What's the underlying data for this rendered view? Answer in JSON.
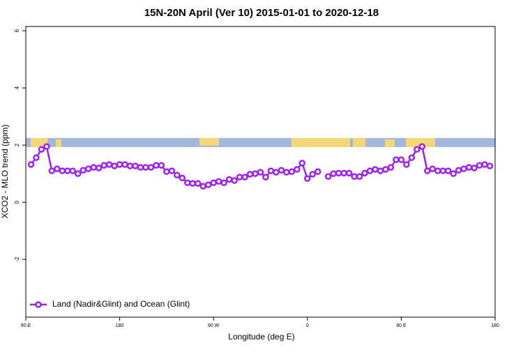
{
  "chart_data": {
    "type": "line",
    "title": "15N-20N April (Ver 10)   2015-01-01 to 2020-12-18",
    "x_label": "Longitude (deg E)",
    "y_label": "XCO2 - MLO trend (ppm)",
    "xlim": [
      90,
      540
    ],
    "xticks": [
      {
        "value": 90,
        "label": "90 E"
      },
      {
        "value": 180,
        "label": "180"
      },
      {
        "value": 270,
        "label": "90 W"
      },
      {
        "value": 360,
        "label": "0"
      },
      {
        "value": 450,
        "label": "90 E"
      },
      {
        "value": 540,
        "label": "180"
      }
    ],
    "ylim": [
      -4.02,
      6.15
    ],
    "yticks": [
      -2,
      0,
      2,
      4,
      6
    ],
    "legend": "bottomleft",
    "x": [
      95,
      100,
      105,
      110,
      115,
      120,
      125,
      130,
      135,
      140,
      145,
      150,
      155,
      160,
      165,
      170,
      175,
      180,
      185,
      190,
      195,
      200,
      205,
      210,
      215,
      220,
      225,
      230,
      235,
      240,
      245,
      250,
      255,
      260,
      265,
      270,
      275,
      280,
      285,
      290,
      295,
      300,
      305,
      310,
      315,
      320,
      325,
      330,
      335,
      340,
      345,
      350,
      355,
      360,
      365,
      370,
      375,
      380,
      385,
      390,
      395,
      400,
      405,
      410,
      415,
      420,
      425,
      430,
      435,
      440,
      445,
      450,
      455,
      460,
      465,
      470,
      475,
      480,
      485,
      490,
      495,
      500,
      505,
      510,
      515,
      520,
      525,
      530,
      535
    ],
    "series": [
      {
        "name": "Land (Nadir&Glint) and Ocean (Glint)",
        "color": "#a020f0",
        "values": [
          1.32,
          1.56,
          1.85,
          1.95,
          1.1,
          1.17,
          1.1,
          1.1,
          1.1,
          1.0,
          1.12,
          1.17,
          1.22,
          1.2,
          1.29,
          1.32,
          1.27,
          1.32,
          1.32,
          1.27,
          1.27,
          1.22,
          1.22,
          1.22,
          1.29,
          1.29,
          1.07,
          1.1,
          0.95,
          0.85,
          0.68,
          0.66,
          0.66,
          0.56,
          0.61,
          0.68,
          0.73,
          0.68,
          0.8,
          0.76,
          0.88,
          0.88,
          0.98,
          1.0,
          1.05,
          0.88,
          1.1,
          1.05,
          1.12,
          1.05,
          1.07,
          1.15,
          1.37,
          0.83,
          0.98,
          1.07,
          null,
          0.9,
          1.0,
          1.02,
          1.02,
          1.02,
          0.9,
          0.9,
          1.02,
          1.1,
          1.15,
          1.1,
          1.15,
          1.22,
          1.49,
          1.49,
          1.32,
          1.56,
          1.85,
          1.95,
          1.1,
          1.17,
          1.1,
          1.1,
          1.1,
          1.0,
          1.12,
          1.17,
          1.22,
          1.2,
          1.29,
          1.32,
          1.27
        ]
      }
    ]
  }
}
